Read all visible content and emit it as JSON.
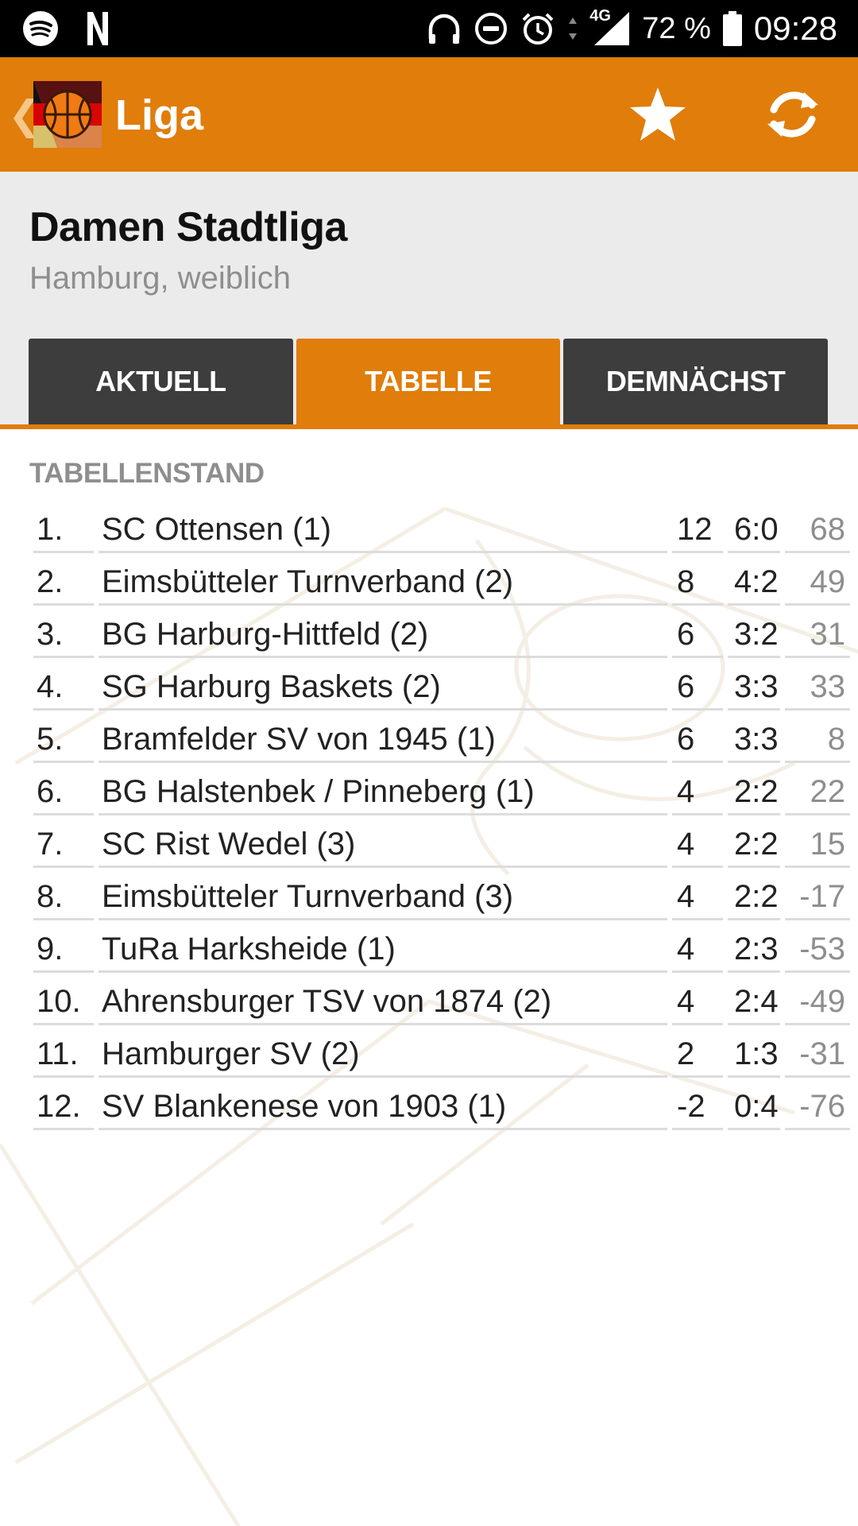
{
  "status_bar": {
    "left_icons": [
      "spotify-icon",
      "netflix-icon"
    ],
    "right_icons": [
      "headphones-icon",
      "do-not-disturb-icon",
      "alarm-icon",
      "data-arrows-icon",
      "signal-icon",
      "battery-icon"
    ],
    "network": "4G",
    "battery": "72 %",
    "time": "09:28"
  },
  "app_bar": {
    "back_icon": "chevron-left-icon",
    "logo": "basketball-logo",
    "title": "Liga",
    "actions": [
      "star-icon",
      "refresh-icon"
    ]
  },
  "header": {
    "title": "Damen Stadtliga",
    "subtitle": "Hamburg, weiblich"
  },
  "tabs": [
    {
      "label": "AKTUELL",
      "active": false
    },
    {
      "label": "TABELLE",
      "active": true
    },
    {
      "label": "DEMNÄCHST",
      "active": false
    }
  ],
  "table": {
    "section_label": "TABELLENSTAND",
    "rows": [
      {
        "rank": "1.",
        "team": "SC Ottensen (1)",
        "points": "12",
        "games": "6:0",
        "diff": "68"
      },
      {
        "rank": "2.",
        "team": "Eimsbütteler Turnverband (2)",
        "points": "8",
        "games": "4:2",
        "diff": "49"
      },
      {
        "rank": "3.",
        "team": "BG Harburg-Hittfeld (2)",
        "points": "6",
        "games": "3:2",
        "diff": "31"
      },
      {
        "rank": "4.",
        "team": "SG Harburg Baskets (2)",
        "points": "6",
        "games": "3:3",
        "diff": "33"
      },
      {
        "rank": "5.",
        "team": "Bramfelder SV von 1945 (1)",
        "points": "6",
        "games": "3:3",
        "diff": "8"
      },
      {
        "rank": "6.",
        "team": "BG Halstenbek / Pinneberg (1)",
        "points": "4",
        "games": "2:2",
        "diff": "22"
      },
      {
        "rank": "7.",
        "team": "SC Rist Wedel (3)",
        "points": "4",
        "games": "2:2",
        "diff": "15"
      },
      {
        "rank": "8.",
        "team": "Eimsbütteler Turnverband (3)",
        "points": "4",
        "games": "2:2",
        "diff": "-17"
      },
      {
        "rank": "9.",
        "team": "TuRa Harksheide (1)",
        "points": "4",
        "games": "2:3",
        "diff": "-53"
      },
      {
        "rank": "10.",
        "team": "Ahrensburger TSV von 1874 (2)",
        "points": "4",
        "games": "2:4",
        "diff": "-49"
      },
      {
        "rank": "11.",
        "team": "Hamburger SV (2)",
        "points": "2",
        "games": "1:3",
        "diff": "-31"
      },
      {
        "rank": "12.",
        "team": "SV Blankenese von 1903 (1)",
        "points": "-2",
        "games": "0:4",
        "diff": "-76"
      }
    ]
  },
  "colors": {
    "accent": "#e07d0b",
    "tab_inactive": "#3d3d3d",
    "header_bg": "#ebebeb",
    "muted_text": "#8e8e8e"
  }
}
